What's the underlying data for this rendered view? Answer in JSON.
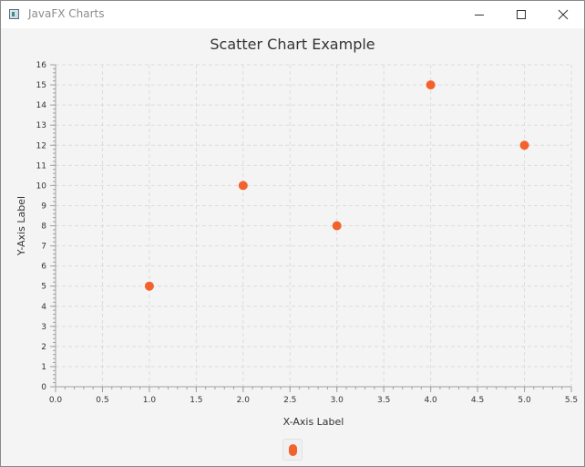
{
  "window": {
    "title": "JavaFX Charts",
    "app_icon": "java-app-icon",
    "controls": [
      "minimize-icon",
      "maximize-icon",
      "close-icon"
    ]
  },
  "colors": {
    "series": "#f3622d",
    "plot_background": "#f4f4f4",
    "grid": "#dcdcdc",
    "axis": "#a0a0a0",
    "text": "#333333"
  },
  "chart_data": {
    "type": "scatter",
    "title": "Scatter Chart Example",
    "xlabel": "X-Axis Label",
    "ylabel": "Y-Axis Label",
    "xlim": [
      0,
      5.5
    ],
    "ylim": [
      0,
      16
    ],
    "x_ticks": [
      "0.0",
      "0.5",
      "1.0",
      "1.5",
      "2.0",
      "2.5",
      "3.0",
      "3.5",
      "4.0",
      "4.5",
      "5.0",
      "5.5"
    ],
    "y_ticks": [
      "0",
      "1",
      "2",
      "3",
      "4",
      "5",
      "6",
      "7",
      "8",
      "9",
      "10",
      "11",
      "12",
      "13",
      "14",
      "15",
      "16"
    ],
    "grid": true,
    "legend": "bottom-center",
    "series": [
      {
        "points": [
          {
            "x": 1,
            "y": 5
          },
          {
            "x": 2,
            "y": 10
          },
          {
            "x": 3,
            "y": 8
          },
          {
            "x": 4,
            "y": 15
          },
          {
            "x": 5,
            "y": 12
          }
        ]
      }
    ]
  }
}
